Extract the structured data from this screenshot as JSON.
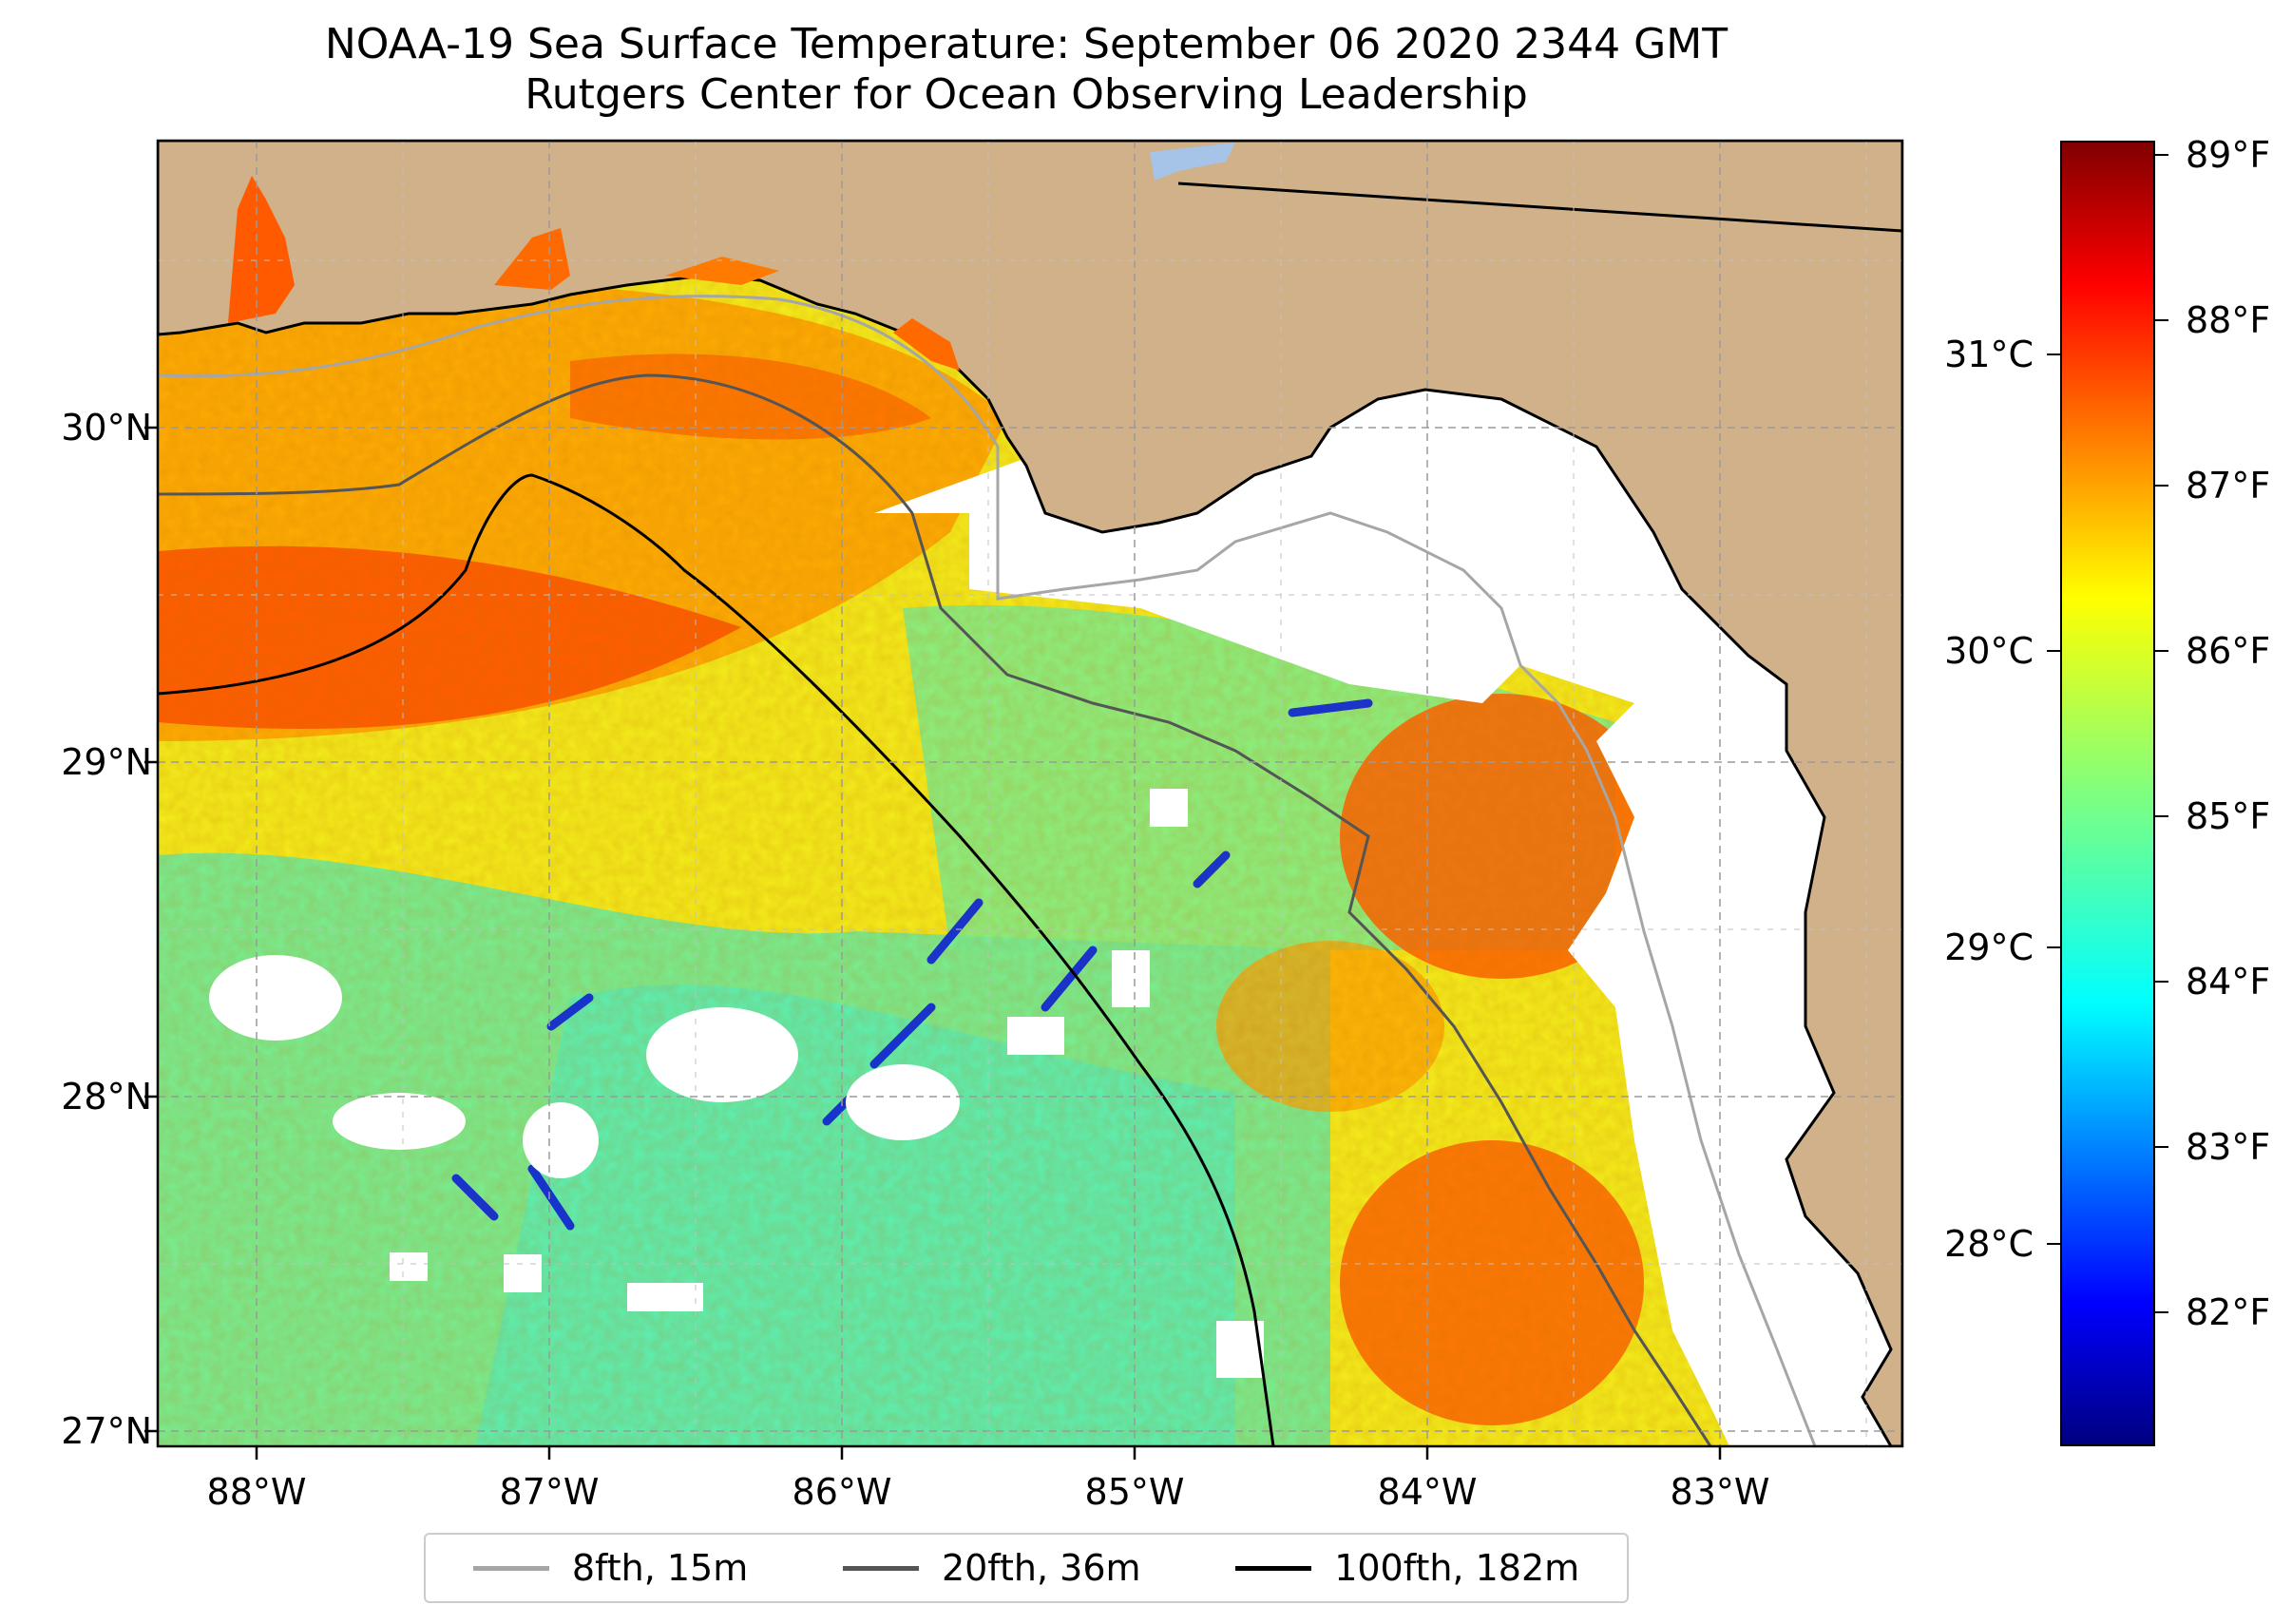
{
  "title": {
    "line1": "NOAA-19 Sea Surface Temperature: September 06 2020 2344 GMT",
    "line2": "Rutgers Center for Ocean Observing Leadership"
  },
  "map": {
    "lon_labels": [
      "88°W",
      "87°W",
      "86°W",
      "85°W",
      "84°W",
      "83°W"
    ],
    "lat_labels": [
      "30°N",
      "29°N",
      "28°N",
      "27°N"
    ],
    "land_color": "#d0b18a",
    "water_color": "#a6c4e8"
  },
  "legend": {
    "items": [
      {
        "label": "8fth, 15m",
        "color": "#a6a6a6"
      },
      {
        "label": "20fth, 36m",
        "color": "#555555"
      },
      {
        "label": "100fth, 182m",
        "color": "#000000"
      }
    ]
  },
  "colorbar": {
    "colormap": "jet",
    "fahrenheit_labels": [
      "89°F",
      "88°F",
      "87°F",
      "86°F",
      "85°F",
      "84°F",
      "83°F",
      "82°F"
    ],
    "celsius_labels": [
      "31°C",
      "30°C",
      "29°C",
      "28°C"
    ]
  }
}
